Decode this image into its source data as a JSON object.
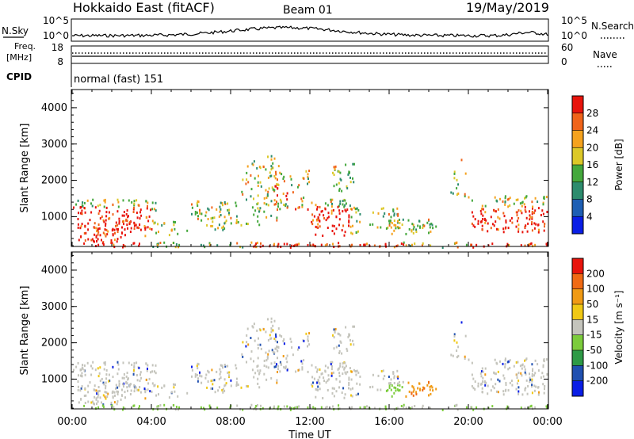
{
  "header": {
    "station": "Hokkaido East (fitACF)",
    "beam": "Beam 01",
    "date": "19/May/2019"
  },
  "side_labels": {
    "nsky": "N.Sky",
    "freq": "Freq.",
    "freq_unit": "[MHz]",
    "cpid": "CPID",
    "nsearch": "N.Search",
    "nave": "Nave"
  },
  "noise_ticks": {
    "left_top": "10^5",
    "left_bottom": "10^0",
    "right_top": "10^5",
    "right_bottom": "10^0"
  },
  "freq_ticks": {
    "left_top": "18",
    "left_bottom": "8",
    "right_top": "60",
    "right_bottom": "0"
  },
  "cpid_text": "normal (fast) 151",
  "colors": {
    "scatter_red": "#e8160c",
    "scatter_orange": "#f07a10",
    "scatter_green": "#2e9a3a",
    "grey": "#c4c4bc"
  },
  "chart_data": [
    {
      "type": "heatmap",
      "ylabel": "Slant Range [km]",
      "yticks": [
        "1000",
        "2000",
        "3000",
        "4000"
      ],
      "ylim": [
        180,
        4500
      ],
      "xlim": [
        0,
        24
      ],
      "colorbar_label": "Power [dB]",
      "colorbar_ticks": [
        "4",
        "8",
        "12",
        "16",
        "20",
        "24",
        "28"
      ],
      "colorbar_colors": [
        "#0a1ee6",
        "#1e5fb4",
        "#2d8c6e",
        "#44a83c",
        "#dcc828",
        "#f5a21e",
        "#f0641a",
        "#e8140c"
      ]
    },
    {
      "type": "heatmap",
      "xlabel": "Time UT",
      "ylabel": "Slant Range [km]",
      "yticks": [
        "1000",
        "2000",
        "3000",
        "4000"
      ],
      "xticks": [
        "00:00",
        "04:00",
        "08:00",
        "12:00",
        "16:00",
        "20:00",
        "00:00"
      ],
      "ylim": [
        180,
        4500
      ],
      "xlim": [
        0,
        24
      ],
      "colorbar_label": "Velocity [m s⁻¹]",
      "colorbar_ticks": [
        "200",
        "100",
        "50",
        "15",
        "-15",
        "-50",
        "-100",
        "-200"
      ],
      "colorbar_colors": [
        "#0a1ee6",
        "#2050b0",
        "#2e9a46",
        "#7ccc3c",
        "#c4c4bc",
        "#f0c814",
        "#f09a14",
        "#f06a14",
        "#e8140c"
      ]
    }
  ]
}
